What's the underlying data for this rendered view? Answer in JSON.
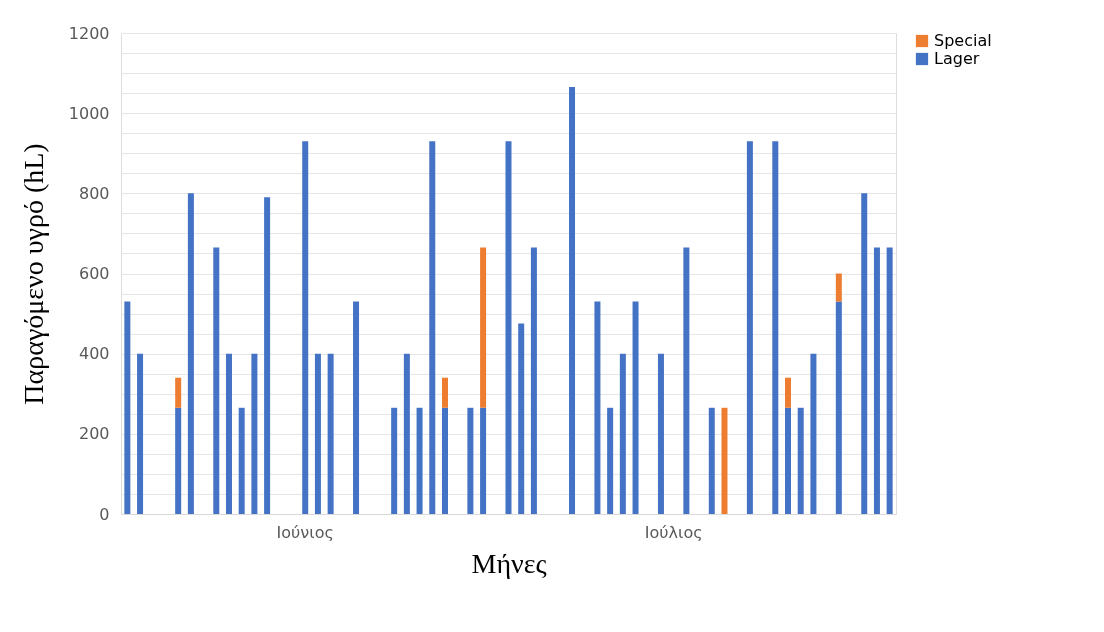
{
  "chart_data": {
    "type": "bar",
    "stacked": true,
    "xlabel": "Μήνες",
    "ylabel": "Παραγόμενο υγρό (hL)",
    "categories": [
      null,
      null,
      null,
      null,
      null,
      null,
      null,
      null,
      null,
      null,
      null,
      null,
      null,
      null,
      "Ιούνιος",
      null,
      null,
      null,
      null,
      null,
      null,
      null,
      null,
      null,
      null,
      null,
      null,
      null,
      null,
      null,
      null,
      null,
      null,
      null,
      null,
      null,
      null,
      null,
      null,
      null,
      null,
      null,
      null,
      "Ιούλιος",
      null,
      null,
      null,
      null,
      null,
      null,
      null,
      null,
      null,
      null,
      null,
      null,
      null,
      null,
      null,
      null,
      null
    ],
    "series": [
      {
        "name": "Lager",
        "color": "#4472c4",
        "values": [
          530,
          400,
          null,
          null,
          265,
          800,
          null,
          665,
          400,
          265,
          400,
          790,
          null,
          null,
          930,
          400,
          400,
          null,
          530,
          null,
          null,
          265,
          400,
          265,
          930,
          265,
          null,
          265,
          265,
          null,
          930,
          475,
          665,
          null,
          null,
          1065,
          null,
          530,
          265,
          400,
          530,
          null,
          400,
          null,
          665,
          null,
          265,
          null,
          null,
          930,
          null,
          930,
          265,
          265,
          400,
          null,
          530,
          null,
          800,
          665,
          665
        ]
      },
      {
        "name": "Special",
        "color": "#ed7d31",
        "values": [
          null,
          null,
          null,
          null,
          75,
          null,
          null,
          null,
          null,
          null,
          null,
          null,
          null,
          null,
          null,
          null,
          null,
          null,
          null,
          null,
          null,
          null,
          null,
          null,
          null,
          75,
          null,
          null,
          400,
          null,
          null,
          null,
          null,
          null,
          null,
          null,
          null,
          null,
          null,
          null,
          null,
          null,
          null,
          null,
          null,
          null,
          null,
          265,
          null,
          null,
          null,
          null,
          75,
          null,
          null,
          null,
          70,
          null,
          null,
          null,
          null
        ]
      }
    ],
    "ylim": [
      0,
      1200
    ],
    "yticks": [
      0,
      {
        "value": 50,
        "label": null
      },
      {
        "value": 100,
        "label": null
      },
      {
        "value": 150,
        "label": null
      },
      200,
      {
        "value": 250,
        "label": null
      },
      {
        "value": 300,
        "label": null
      },
      {
        "value": 350,
        "label": null
      },
      400,
      {
        "value": 450,
        "label": null
      },
      {
        "value": 500,
        "label": null
      },
      {
        "value": 550,
        "label": null
      },
      600,
      {
        "value": 650,
        "label": null
      },
      {
        "value": 700,
        "label": null
      },
      {
        "value": 750,
        "label": null
      },
      800,
      {
        "value": 850,
        "label": null
      },
      {
        "value": 900,
        "label": null
      },
      {
        "value": 950,
        "label": null
      },
      1000,
      {
        "value": 1050,
        "label": null
      },
      {
        "value": 1100,
        "label": null
      },
      {
        "value": 1150,
        "label": null
      },
      1200
    ],
    "grid": "y",
    "legend": "right"
  }
}
